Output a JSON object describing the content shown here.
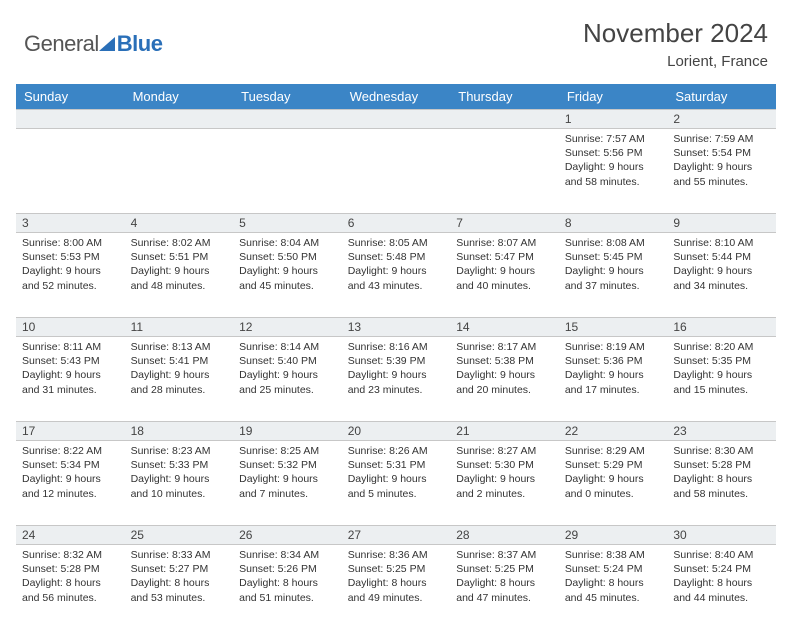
{
  "brand": {
    "general": "General",
    "blue": "Blue"
  },
  "title": {
    "month": "November 2024",
    "location": "Lorient, France"
  },
  "colors": {
    "header_bg": "#3b85c6",
    "header_text": "#ffffff",
    "daynum_bg": "#eceff1",
    "border": "#c7c7c7",
    "brand_blue": "#2a6fb8",
    "text": "#333333"
  },
  "weekdays": [
    "Sunday",
    "Monday",
    "Tuesday",
    "Wednesday",
    "Thursday",
    "Friday",
    "Saturday"
  ],
  "weeks": [
    {
      "nums": [
        "",
        "",
        "",
        "",
        "",
        "1",
        "2"
      ],
      "cells": [
        null,
        null,
        null,
        null,
        null,
        {
          "sunrise": "7:57 AM",
          "sunset": "5:56 PM",
          "daylight": "9 hours and 58 minutes."
        },
        {
          "sunrise": "7:59 AM",
          "sunset": "5:54 PM",
          "daylight": "9 hours and 55 minutes."
        }
      ]
    },
    {
      "nums": [
        "3",
        "4",
        "5",
        "6",
        "7",
        "8",
        "9"
      ],
      "cells": [
        {
          "sunrise": "8:00 AM",
          "sunset": "5:53 PM",
          "daylight": "9 hours and 52 minutes."
        },
        {
          "sunrise": "8:02 AM",
          "sunset": "5:51 PM",
          "daylight": "9 hours and 48 minutes."
        },
        {
          "sunrise": "8:04 AM",
          "sunset": "5:50 PM",
          "daylight": "9 hours and 45 minutes."
        },
        {
          "sunrise": "8:05 AM",
          "sunset": "5:48 PM",
          "daylight": "9 hours and 43 minutes."
        },
        {
          "sunrise": "8:07 AM",
          "sunset": "5:47 PM",
          "daylight": "9 hours and 40 minutes."
        },
        {
          "sunrise": "8:08 AM",
          "sunset": "5:45 PM",
          "daylight": "9 hours and 37 minutes."
        },
        {
          "sunrise": "8:10 AM",
          "sunset": "5:44 PM",
          "daylight": "9 hours and 34 minutes."
        }
      ]
    },
    {
      "nums": [
        "10",
        "11",
        "12",
        "13",
        "14",
        "15",
        "16"
      ],
      "cells": [
        {
          "sunrise": "8:11 AM",
          "sunset": "5:43 PM",
          "daylight": "9 hours and 31 minutes."
        },
        {
          "sunrise": "8:13 AM",
          "sunset": "5:41 PM",
          "daylight": "9 hours and 28 minutes."
        },
        {
          "sunrise": "8:14 AM",
          "sunset": "5:40 PM",
          "daylight": "9 hours and 25 minutes."
        },
        {
          "sunrise": "8:16 AM",
          "sunset": "5:39 PM",
          "daylight": "9 hours and 23 minutes."
        },
        {
          "sunrise": "8:17 AM",
          "sunset": "5:38 PM",
          "daylight": "9 hours and 20 minutes."
        },
        {
          "sunrise": "8:19 AM",
          "sunset": "5:36 PM",
          "daylight": "9 hours and 17 minutes."
        },
        {
          "sunrise": "8:20 AM",
          "sunset": "5:35 PM",
          "daylight": "9 hours and 15 minutes."
        }
      ]
    },
    {
      "nums": [
        "17",
        "18",
        "19",
        "20",
        "21",
        "22",
        "23"
      ],
      "cells": [
        {
          "sunrise": "8:22 AM",
          "sunset": "5:34 PM",
          "daylight": "9 hours and 12 minutes."
        },
        {
          "sunrise": "8:23 AM",
          "sunset": "5:33 PM",
          "daylight": "9 hours and 10 minutes."
        },
        {
          "sunrise": "8:25 AM",
          "sunset": "5:32 PM",
          "daylight": "9 hours and 7 minutes."
        },
        {
          "sunrise": "8:26 AM",
          "sunset": "5:31 PM",
          "daylight": "9 hours and 5 minutes."
        },
        {
          "sunrise": "8:27 AM",
          "sunset": "5:30 PM",
          "daylight": "9 hours and 2 minutes."
        },
        {
          "sunrise": "8:29 AM",
          "sunset": "5:29 PM",
          "daylight": "9 hours and 0 minutes."
        },
        {
          "sunrise": "8:30 AM",
          "sunset": "5:28 PM",
          "daylight": "8 hours and 58 minutes."
        }
      ]
    },
    {
      "nums": [
        "24",
        "25",
        "26",
        "27",
        "28",
        "29",
        "30"
      ],
      "cells": [
        {
          "sunrise": "8:32 AM",
          "sunset": "5:28 PM",
          "daylight": "8 hours and 56 minutes."
        },
        {
          "sunrise": "8:33 AM",
          "sunset": "5:27 PM",
          "daylight": "8 hours and 53 minutes."
        },
        {
          "sunrise": "8:34 AM",
          "sunset": "5:26 PM",
          "daylight": "8 hours and 51 minutes."
        },
        {
          "sunrise": "8:36 AM",
          "sunset": "5:25 PM",
          "daylight": "8 hours and 49 minutes."
        },
        {
          "sunrise": "8:37 AM",
          "sunset": "5:25 PM",
          "daylight": "8 hours and 47 minutes."
        },
        {
          "sunrise": "8:38 AM",
          "sunset": "5:24 PM",
          "daylight": "8 hours and 45 minutes."
        },
        {
          "sunrise": "8:40 AM",
          "sunset": "5:24 PM",
          "daylight": "8 hours and 44 minutes."
        }
      ]
    }
  ],
  "labels": {
    "sunrise": "Sunrise: ",
    "sunset": "Sunset: ",
    "daylight": "Daylight: "
  }
}
